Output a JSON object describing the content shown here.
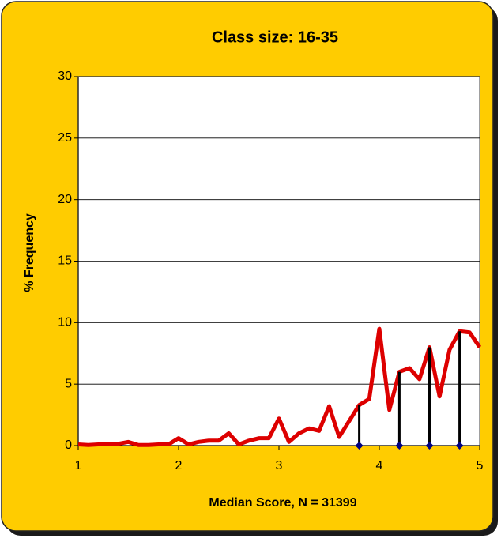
{
  "chart_data": {
    "type": "line",
    "title": "Class size: 16-35",
    "xlabel": "Median Score, N = 31399",
    "ylabel": "% Frequency",
    "x": [
      1,
      1.1,
      1.2,
      1.3,
      1.4,
      1.5,
      1.6,
      1.7,
      1.8,
      1.9,
      2,
      2.1,
      2.2,
      2.3,
      2.4,
      2.5,
      2.6,
      2.7,
      2.8,
      2.9,
      3,
      3.1,
      3.2,
      3.3,
      3.4,
      3.5,
      3.6,
      3.7,
      3.8,
      3.9,
      4,
      4.1,
      4.2,
      4.3,
      4.4,
      4.5,
      4.6,
      4.7,
      4.8,
      4.9,
      5
    ],
    "series": [
      {
        "color": "#dd0000",
        "values": [
          0.1,
          0.05,
          0.1,
          0.1,
          0.15,
          0.3,
          0.05,
          0.05,
          0.1,
          0.1,
          0.6,
          0.1,
          0.3,
          0.4,
          0.4,
          1.0,
          0.1,
          0.4,
          0.6,
          0.6,
          2.2,
          0.3,
          1.0,
          1.4,
          1.2,
          3.2,
          0.7,
          2.0,
          3.3,
          3.8,
          9.5,
          2.9,
          6.0,
          6.3,
          5.4,
          8.0,
          4.0,
          7.8,
          9.3,
          9.2,
          8.0
        ]
      }
    ],
    "stems": {
      "x": [
        3.8,
        4.2,
        4.5,
        4.8
      ],
      "values": [
        3.3,
        6.0,
        8.0,
        9.3
      ],
      "color": "#000000",
      "marker_color": "#000080"
    },
    "xlim": [
      1,
      5
    ],
    "ylim": [
      0,
      30
    ],
    "xticks": [
      1,
      2,
      3,
      4,
      5
    ],
    "yticks": [
      0,
      5,
      10,
      15,
      20,
      25,
      30
    ],
    "grid": true
  }
}
